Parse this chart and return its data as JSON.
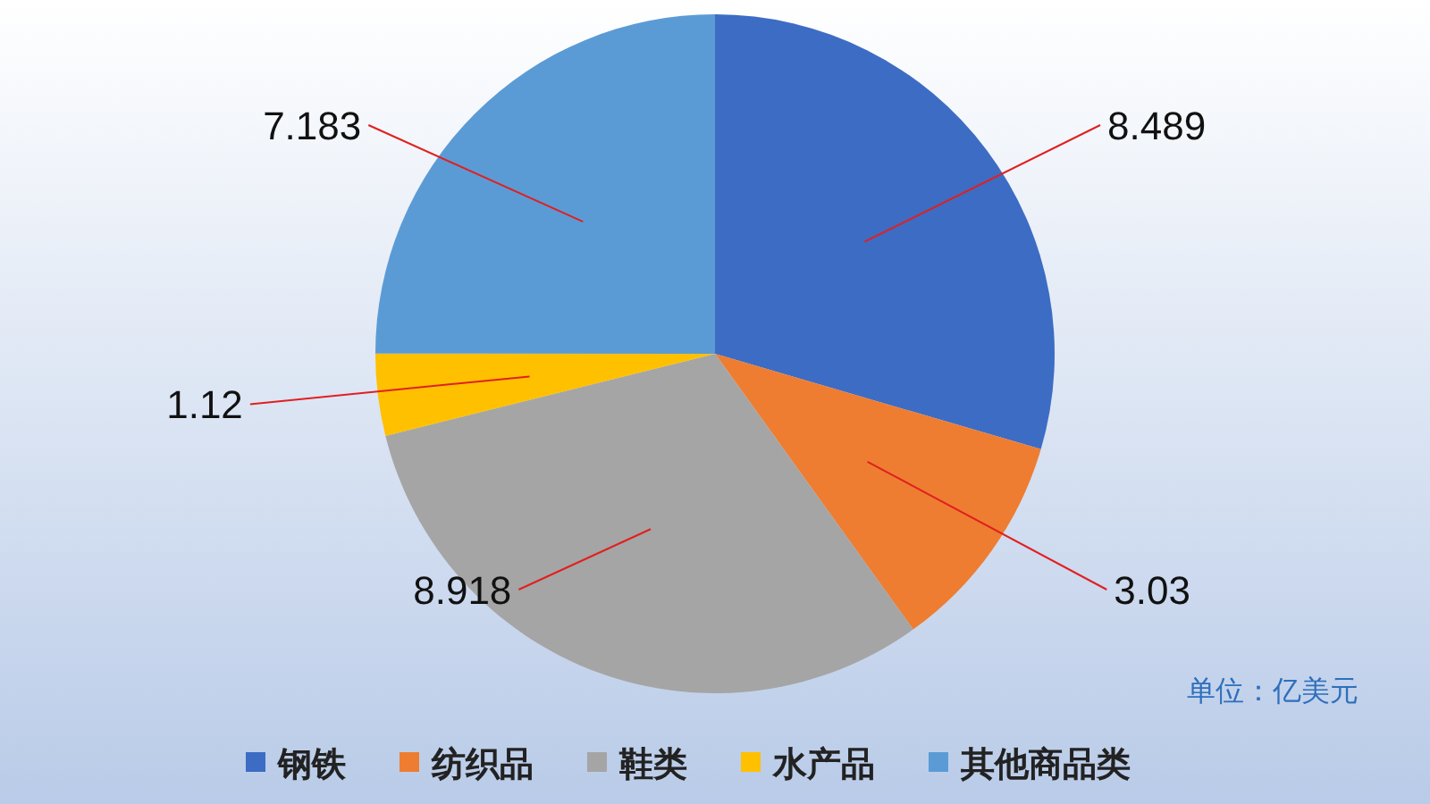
{
  "chart_data": {
    "type": "pie",
    "categories": [
      "钢铁",
      "纺织品",
      "鞋类",
      "水产品",
      "其他商品类"
    ],
    "values": [
      8.489,
      3.03,
      8.918,
      1.12,
      7.183
    ],
    "colors": [
      "#3d6cc4",
      "#ee7d31",
      "#a5a5a5",
      "#ffc000",
      "#5b9bd5"
    ],
    "data_labels": true,
    "legend": "bottom",
    "annotations": [
      "单位：亿美元"
    ]
  }
}
